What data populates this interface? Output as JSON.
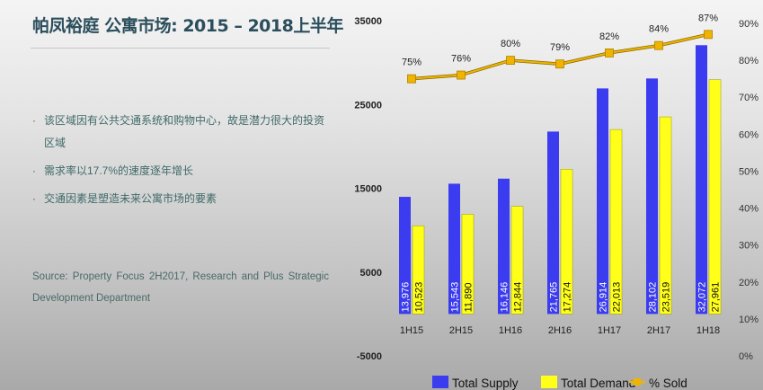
{
  "slide": {
    "title": "帕凤裕庭 公寓市场: 2015 – 2018上半年",
    "bullets": [
      "该区域因有公共交通系统和购物中心，故是潜力很大的投资区域",
      "需求率以17.7%的速度逐年增长",
      "交通因素是塑造未来公寓市场的要素"
    ],
    "source": "Source: Property Focus 2H2017, Research and Plus Strategic Development Department"
  },
  "chart_data": {
    "type": "bar",
    "categories": [
      "1H15",
      "2H15",
      "1H16",
      "2H16",
      "1H17",
      "2H17",
      "1H18"
    ],
    "series": [
      {
        "name": "Total Supply",
        "type": "bar",
        "axis": "left",
        "color": "#3b3bf0",
        "values": [
          13976,
          15543,
          16146,
          21765,
          26914,
          28102,
          32072
        ],
        "labels": [
          "13,976",
          "15,543",
          "16,146",
          "21,765",
          "26,914",
          "28,102",
          "32,072"
        ]
      },
      {
        "name": "Total Demand",
        "type": "bar",
        "axis": "left",
        "color": "#ffff1a",
        "values": [
          10523,
          11890,
          12844,
          17274,
          22013,
          23519,
          27961
        ],
        "labels": [
          "10,523",
          "11,890",
          "12,844",
          "17,274",
          "22,013",
          "23,519",
          "27,961"
        ]
      },
      {
        "name": "% Sold",
        "type": "line",
        "axis": "right",
        "color": "#f0b400",
        "values": [
          75,
          76,
          80,
          79,
          82,
          84,
          87
        ],
        "labels": [
          "75%",
          "76%",
          "80%",
          "79%",
          "82%",
          "84%",
          "87%"
        ]
      }
    ],
    "ylim_left": [
      -5000,
      35000
    ],
    "yticks_left": [
      "35000",
      "25000",
      "15000",
      "5000",
      "-5000"
    ],
    "ylim_right": [
      0,
      90
    ],
    "yticks_right": [
      "90%",
      "80%",
      "70%",
      "60%",
      "50%",
      "40%",
      "30%",
      "20%",
      "10%",
      "0%"
    ],
    "grid": false,
    "legend": "bottom"
  }
}
